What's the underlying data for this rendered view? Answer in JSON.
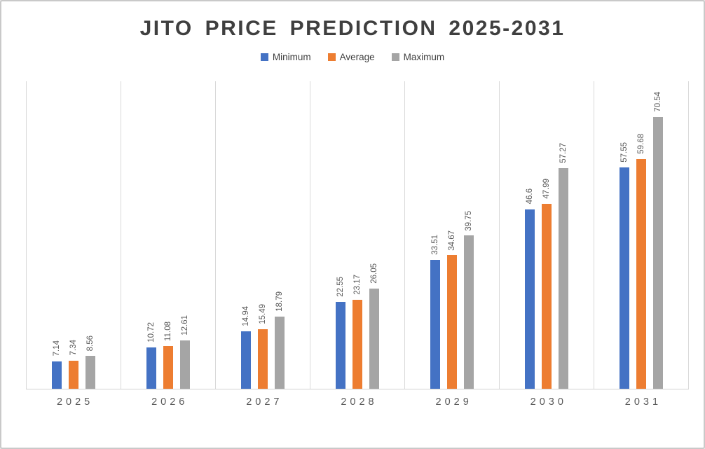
{
  "chart_data": {
    "type": "bar",
    "title": "JITO PRICE PREDICTION 2025-2031",
    "categories": [
      "2025",
      "2026",
      "2027",
      "2028",
      "2029",
      "2030",
      "2031"
    ],
    "series": [
      {
        "name": "Minimum",
        "color": "#4472C4",
        "values": [
          7.14,
          10.72,
          14.94,
          22.55,
          33.51,
          46.6,
          57.55
        ]
      },
      {
        "name": "Average",
        "color": "#ED7D31",
        "values": [
          7.34,
          11.08,
          15.49,
          23.17,
          34.67,
          47.99,
          59.68
        ]
      },
      {
        "name": "Maximum",
        "color": "#A5A5A5",
        "values": [
          8.56,
          12.61,
          18.79,
          26.05,
          39.75,
          57.27,
          70.54
        ]
      }
    ],
    "xlabel": "",
    "ylabel": "",
    "ylim": [
      0,
      80
    ],
    "grid": "vertical-category-lines",
    "legend_position": "top",
    "value_labels": "rotated-vertical-above-bars"
  },
  "colors": {
    "title": "#3f3f3f",
    "axis_label": "#595959",
    "value_label": "#595959",
    "gridline": "#d9d9d9",
    "frame_border": "#c9c9c9",
    "background": "#ffffff"
  }
}
